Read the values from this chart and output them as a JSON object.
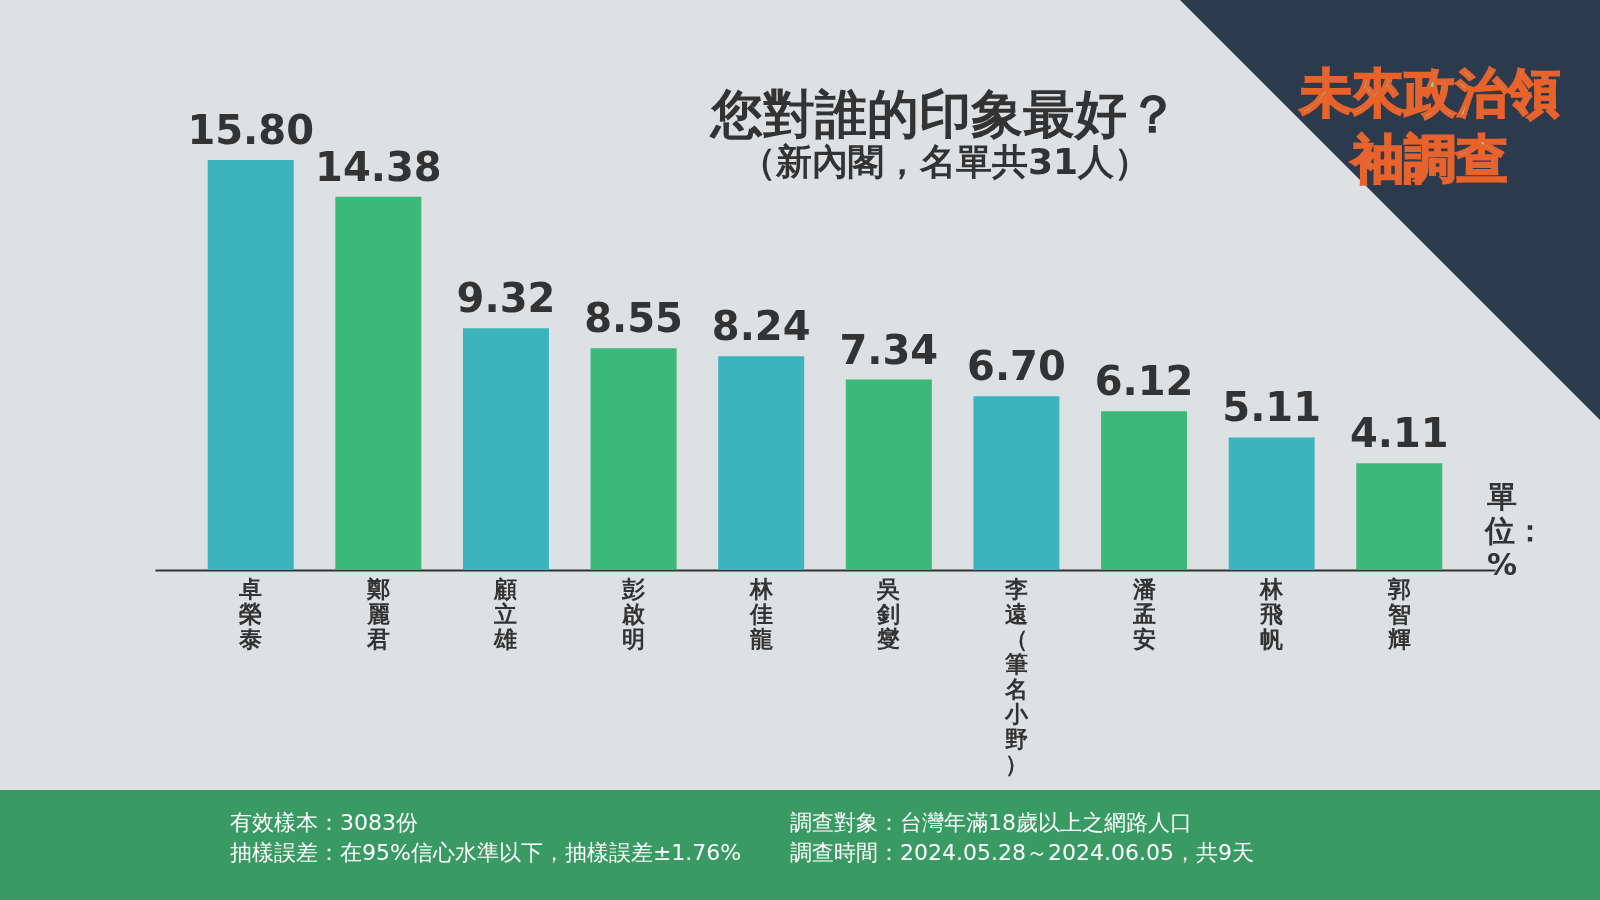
{
  "chart_data": {
    "type": "bar",
    "title": "您對誰的印象最好？",
    "subtitle": "（新內閣，名單共31人）",
    "categories": [
      "卓榮泰",
      "鄭麗君",
      "顧立雄",
      "彭啟明",
      "林佳龍",
      "吳釗燮",
      "李遠（筆名小野）",
      "潘孟安",
      "林飛帆",
      "郭智輝"
    ],
    "values": [
      15.8,
      14.38,
      9.32,
      8.55,
      8.24,
      7.34,
      6.7,
      6.12,
      5.11,
      4.11
    ],
    "value_labels": [
      "15.80",
      "14.38",
      "9.32",
      "8.55",
      "8.24",
      "7.34",
      "6.70",
      "6.12",
      "5.11",
      "4.11"
    ],
    "colors": [
      "#3bb4bb",
      "#3cb878",
      "#3bb4bb",
      "#3cb878",
      "#3bb4bb",
      "#3cb878",
      "#3bb4bb",
      "#3cb878",
      "#3bb4bb",
      "#3cb878"
    ],
    "annotations": [
      "單位：%",
      "有效樣本：3083份",
      "抽樣誤差：在95%信心水準以下，抽樣誤差±1.76%",
      "調查對象：台灣年滿18歲以上之網路人口",
      "調查時間：2024.05.28～2024.06.05，共9天",
      "未來政治領袖調查"
    ],
    "grid": false,
    "legend": false
  }
}
